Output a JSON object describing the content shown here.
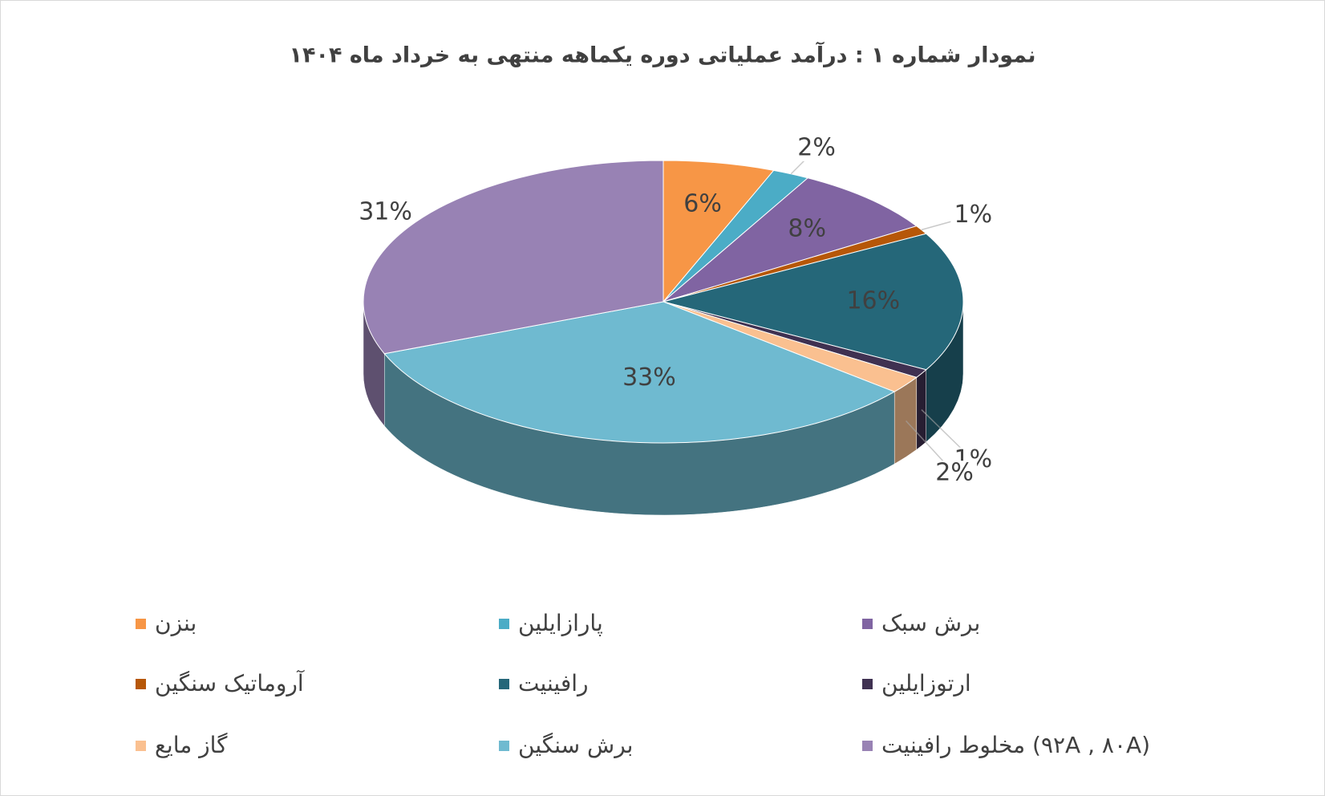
{
  "chart_data": {
    "type": "pie3d",
    "title": "نمودار شماره ۱ : درآمد عملیاتی دوره یکماهه منتهی به خرداد ماه ۱۴۰۴",
    "categories": [
      "بنزن",
      "پارازایلین",
      "برش سبک",
      "آروماتیک سنگین",
      "رافینیت",
      "ارتوزایلین",
      "گاز مایع",
      "برش سنگین",
      "مخلوط رافینیت (۹۲A , ۸۰A)"
    ],
    "values": [
      6,
      2,
      8,
      1,
      16,
      1,
      2,
      33,
      31
    ],
    "value_labels": [
      "6%",
      "2%",
      "8%",
      "1%",
      "16%",
      "1%",
      "2%",
      "33%",
      "31%"
    ],
    "colors": [
      "#f79646",
      "#4bacc6",
      "#8064a2",
      "#b65708",
      "#256779",
      "#3f3151",
      "#fac090",
      "#6fbad0",
      "#9882b4"
    ],
    "legend": "bottom"
  }
}
